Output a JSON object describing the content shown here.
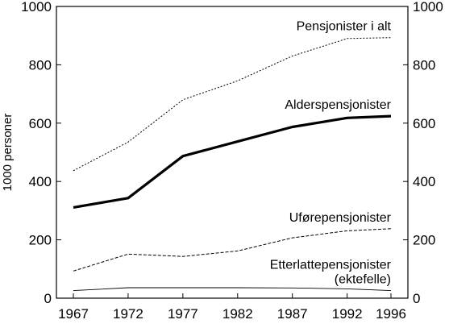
{
  "chart_data": {
    "type": "line",
    "title": "",
    "xlabel": "",
    "ylabel": "1000 personer",
    "x": [
      1967,
      1972,
      1977,
      1982,
      1987,
      1992,
      1996
    ],
    "xticks": [
      "1967",
      "1972",
      "1977",
      "1982",
      "1987",
      "1992",
      "1996"
    ],
    "ylim": [
      0,
      1000
    ],
    "yticks": [
      "0",
      "200",
      "400",
      "600",
      "800",
      "1000"
    ],
    "secondary_y_axis": true,
    "grid": false,
    "legend": "none",
    "series": [
      {
        "name": "Pensjonister i alt",
        "label_lines": [
          "Pensjonister i alt"
        ],
        "style": "dotted",
        "values": [
          437,
          535,
          680,
          745,
          830,
          890,
          893
        ]
      },
      {
        "name": "Alderspensjonister",
        "label_lines": [
          "Alderspensjonister"
        ],
        "style": "bold",
        "values": [
          311,
          343,
          487,
          537,
          587,
          618,
          624
        ]
      },
      {
        "name": "Uførepensjonister",
        "label_lines": [
          "Uførepensjonister"
        ],
        "style": "dashed",
        "values": [
          93,
          151,
          143,
          162,
          207,
          231,
          238
        ]
      },
      {
        "name": "Etterlattepensjonister (ektefelle)",
        "label_lines": [
          "Etterlattepensjonister",
          "(ektefelle)"
        ],
        "style": "thin",
        "values": [
          26,
          36,
          36,
          36,
          35,
          32,
          26
        ]
      }
    ]
  }
}
